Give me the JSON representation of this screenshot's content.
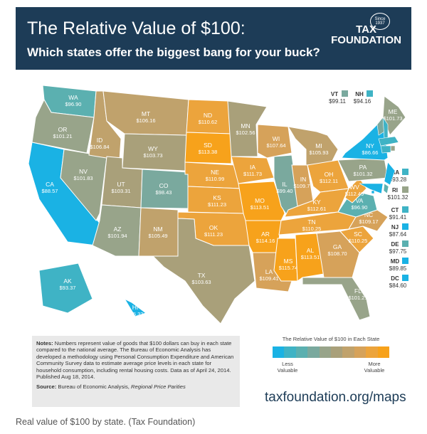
{
  "header": {
    "title": "The Relative Value of $100:",
    "subtitle": "Which states offer the biggest bang for your buck?",
    "logo_top": "TAX",
    "logo_bottom": "FOUNDATION",
    "logo_since": "Since 1937"
  },
  "states": [
    {
      "abbr": "WA",
      "value": "$96.90",
      "color": "#5bb0b0"
    },
    {
      "abbr": "OR",
      "value": "$101.21",
      "color": "#98a48a"
    },
    {
      "abbr": "CA",
      "value": "$88.57",
      "color": "#1ab2e4"
    },
    {
      "abbr": "NV",
      "value": "$101.83",
      "color": "#98a48a"
    },
    {
      "abbr": "ID",
      "value": "$106.84",
      "color": "#c0a26c"
    },
    {
      "abbr": "MT",
      "value": "$106.16",
      "color": "#c0a26c"
    },
    {
      "abbr": "WY",
      "value": "$103.73",
      "color": "#a9a07a"
    },
    {
      "abbr": "UT",
      "value": "$103.31",
      "color": "#a9a07a"
    },
    {
      "abbr": "AZ",
      "value": "$101.94",
      "color": "#98a48a"
    },
    {
      "abbr": "CO",
      "value": "$98.43",
      "color": "#7aa99e"
    },
    {
      "abbr": "NM",
      "value": "$105.49",
      "color": "#c0a26c"
    },
    {
      "abbr": "ND",
      "value": "$110.62",
      "color": "#eca43c"
    },
    {
      "abbr": "SD",
      "value": "$113.38",
      "color": "#f7a21b"
    },
    {
      "abbr": "NE",
      "value": "$110.99",
      "color": "#eca43c"
    },
    {
      "abbr": "KS",
      "value": "$111.23",
      "color": "#eca43c"
    },
    {
      "abbr": "OK",
      "value": "$111.23",
      "color": "#eca43c"
    },
    {
      "abbr": "TX",
      "value": "$103.63",
      "color": "#a9a07a"
    },
    {
      "abbr": "MN",
      "value": "$102.56",
      "color": "#a9a07a"
    },
    {
      "abbr": "IA",
      "value": "$111.73",
      "color": "#eca43c"
    },
    {
      "abbr": "MO",
      "value": "$113.51",
      "color": "#f7a21b"
    },
    {
      "abbr": "AR",
      "value": "$114.16",
      "color": "#f7a21b"
    },
    {
      "abbr": "LA",
      "value": "$109.41",
      "color": "#d6a25a"
    },
    {
      "abbr": "WI",
      "value": "$107.64",
      "color": "#d6a25a"
    },
    {
      "abbr": "IL",
      "value": "$99.40",
      "color": "#7aa99e"
    },
    {
      "abbr": "MS",
      "value": "$115.74",
      "color": "#f7a21b"
    },
    {
      "abbr": "MI",
      "value": "$105.93",
      "color": "#c0a26c"
    },
    {
      "abbr": "IN",
      "value": "$109.77",
      "color": "#d6a25a"
    },
    {
      "abbr": "OH",
      "value": "$112.11",
      "color": "#eca43c"
    },
    {
      "abbr": "KY",
      "value": "$112.61",
      "color": "#eca43c"
    },
    {
      "abbr": "TN",
      "value": "$110.25",
      "color": "#eca43c"
    },
    {
      "abbr": "AL",
      "value": "$113.51",
      "color": "#f7a21b"
    },
    {
      "abbr": "GA",
      "value": "$108.70",
      "color": "#d6a25a"
    },
    {
      "abbr": "FL",
      "value": "$101.21",
      "color": "#98a48a"
    },
    {
      "abbr": "SC",
      "value": "$110.25",
      "color": "#eca43c"
    },
    {
      "abbr": "NC",
      "value": "$109.17",
      "color": "#d6a25a"
    },
    {
      "abbr": "VA",
      "value": "$96.90",
      "color": "#5bb0b0"
    },
    {
      "abbr": "WV",
      "value": "$112.49",
      "color": "#eca43c"
    },
    {
      "abbr": "PA",
      "value": "$101.32",
      "color": "#98a48a"
    },
    {
      "abbr": "NY",
      "value": "$86.66",
      "color": "#1ab2e4"
    },
    {
      "abbr": "ME",
      "value": "$101.73",
      "color": "#98a48a"
    },
    {
      "abbr": "AK",
      "value": "$93.37",
      "color": "#3fb3c5"
    },
    {
      "abbr": "HI",
      "value": "$85.32",
      "color": "#1ab2e4"
    }
  ],
  "small_states": [
    {
      "abbr": "VT",
      "value": "$99.11",
      "color": "#7aa99e"
    },
    {
      "abbr": "NH",
      "value": "$94.16",
      "color": "#3fb3c5"
    },
    {
      "abbr": "MA",
      "value": "$93.28",
      "color": "#3fb3c5"
    },
    {
      "abbr": "RI",
      "value": "$101.32",
      "color": "#98a48a"
    },
    {
      "abbr": "CT",
      "value": "$91.41",
      "color": "#3fb3c5"
    },
    {
      "abbr": "NJ",
      "value": "$87.64",
      "color": "#1ab2e4"
    },
    {
      "abbr": "DE",
      "value": "$97.75",
      "color": "#5bb0b0"
    },
    {
      "abbr": "MD",
      "value": "$89.85",
      "color": "#1ab2e4"
    },
    {
      "abbr": "DC",
      "value": "$84.60",
      "color": "#1ab2e4"
    }
  ],
  "notes": {
    "label": "Notes:",
    "text": "Numbers represent value of goods that $100 dollars can buy in each state compared to the national average. The Bureau of Economic Analysis has developed a methodology using Personal Consumption Expenditure and American Community Survey data to estimate average price levels in each state for household consumption, including rental housing costs.  Data as of April 24, 2014. Published Aug 18, 2014."
  },
  "source": {
    "label": "Source:",
    "text": "Bureau of Economic Analysis,",
    "italic": "Regional Price Parities"
  },
  "legend": {
    "title": "The Relative Value of $100 in Each State",
    "low": "Less Valuable",
    "high": "More Valuable",
    "colors": [
      "#1ab2e4",
      "#3fb3c5",
      "#5bb0b0",
      "#7aa99e",
      "#98a48a",
      "#a9a07a",
      "#c0a26c",
      "#d6a25a",
      "#eca43c",
      "#f7a21b"
    ]
  },
  "url": "taxfoundation.org/maps",
  "caption": "Real value of $100 by state. (Tax Foundation)"
}
